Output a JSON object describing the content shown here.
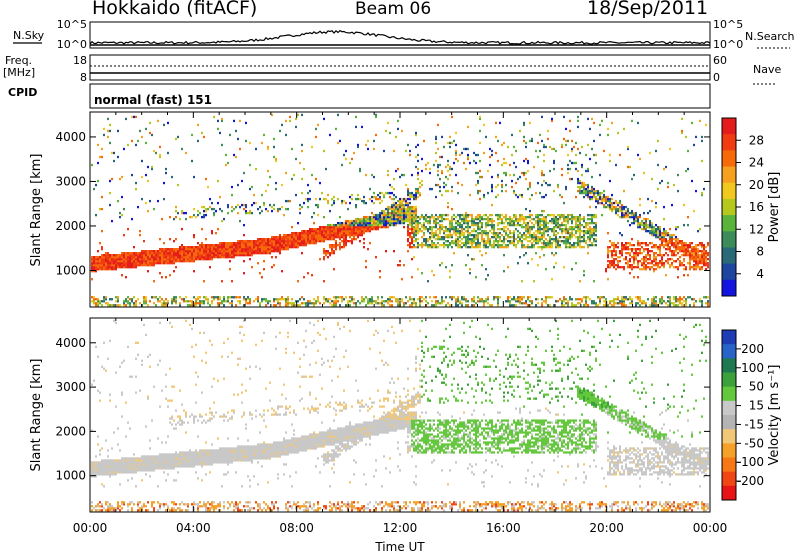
{
  "header": {
    "station": "Hokkaido (fitACF)",
    "beam": "Beam 06",
    "date": "18/Sep/2011"
  },
  "strip": {
    "nsky_label": "N.Sky",
    "nsearch_label": "N.Search",
    "noise_ticks": [
      "10^5",
      "10^0"
    ],
    "freq_label": "Freq.",
    "freq_unit": "[MHz]",
    "freq_ticks": [
      "18",
      "8"
    ],
    "nave_label": "Nave",
    "nave_ticks": [
      "60",
      "0"
    ],
    "cpid_label": "CPID",
    "cpid_value": "normal (fast) 151"
  },
  "chart_data": [
    {
      "type": "heatmap",
      "panel": "power",
      "ylabel": "Slant Range [km]",
      "ylim": [
        180,
        4560
      ],
      "yticks": [
        1000,
        2000,
        3000,
        4000
      ],
      "xlim_hours": [
        0,
        24
      ],
      "colorbar": {
        "label": "Power [dB]",
        "ticks": [
          "28",
          "24",
          "20",
          "16",
          "12",
          "8",
          "4"
        ],
        "colors": [
          "#e41c1c",
          "#f03c10",
          "#f66a0a",
          "#f5a01e",
          "#f0c81e",
          "#b4c81e",
          "#5ab43c",
          "#3c8c5a",
          "#2a6a78",
          "#1e46a0",
          "#1414e0"
        ]
      }
    },
    {
      "type": "heatmap",
      "panel": "velocity",
      "ylabel": "Slant Range [km]",
      "ylim": [
        180,
        4560
      ],
      "yticks": [
        1000,
        2000,
        3000,
        4000
      ],
      "xlim_hours": [
        0,
        24
      ],
      "xticks": [
        "00:00",
        "04:00",
        "08:00",
        "12:00",
        "16:00",
        "20:00",
        "00:00"
      ],
      "xlabel": "Time UT",
      "colorbar": {
        "label": "Velocity [m s⁻¹]",
        "ticks": [
          "200",
          "100",
          "50",
          "15",
          "-15",
          "-50",
          "-100",
          "-200"
        ],
        "colors": [
          "#1e3cb4",
          "#2864c8",
          "#1e7850",
          "#3ca03c",
          "#64c83c",
          "#c8c8c8",
          "#b4b4b4",
          "#f0c878",
          "#f5a028",
          "#f57814",
          "#f04614",
          "#e61414"
        ]
      }
    }
  ]
}
